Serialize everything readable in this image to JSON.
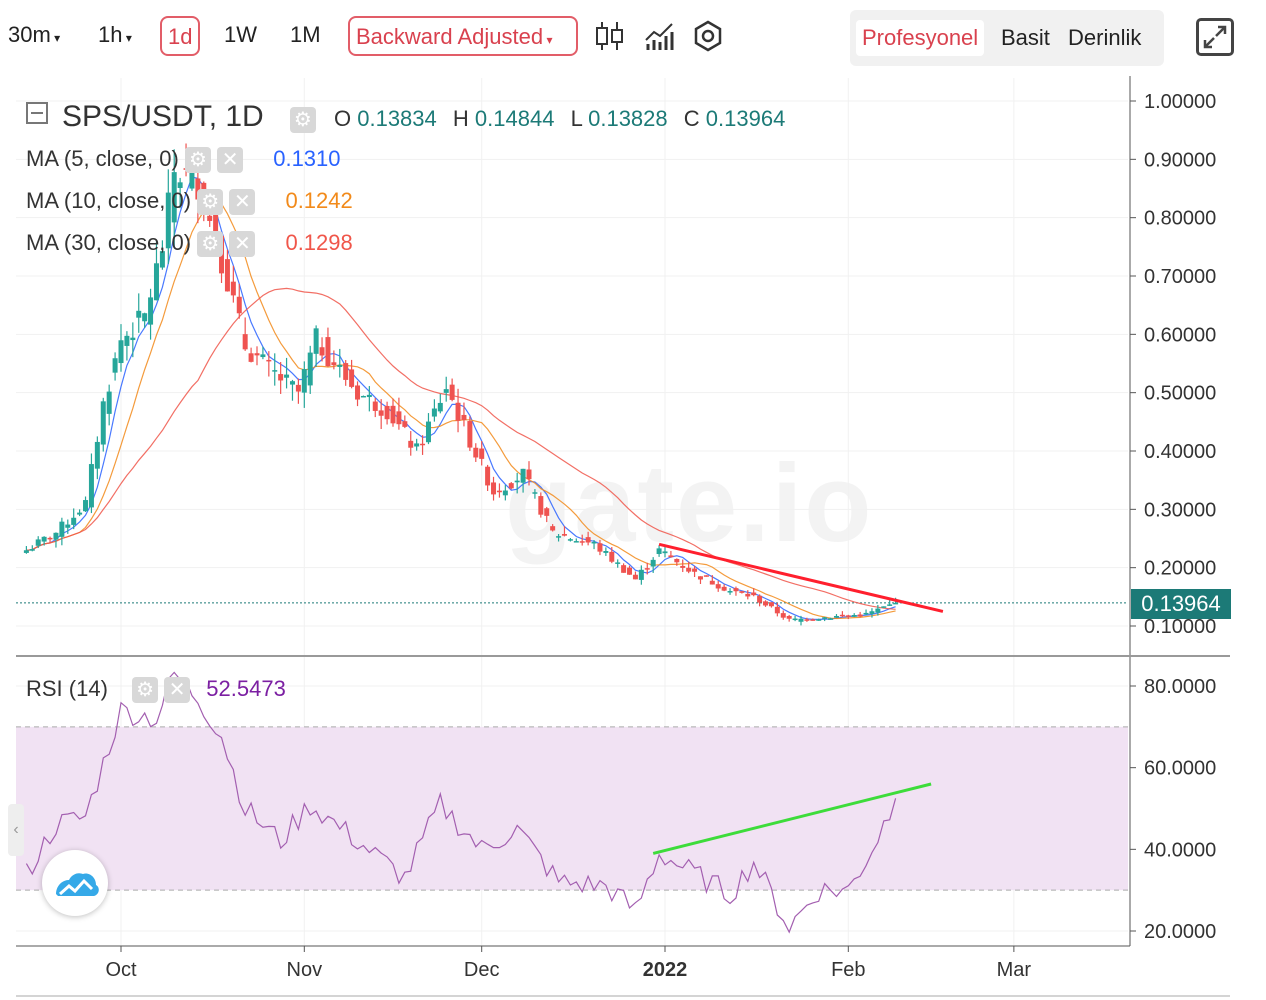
{
  "toolbar": {
    "intervals": [
      "30m",
      "1h",
      "1d",
      "1W",
      "1M"
    ],
    "active_interval": "1d",
    "adjustment": "Backward Adjusted",
    "view_modes": [
      "Profesyonel",
      "Basit",
      "Derinlik"
    ],
    "active_view": "Profesyonel",
    "icons": [
      "candlestick-icon",
      "indicators-icon",
      "settings-icon",
      "fullscreen-icon"
    ]
  },
  "watermark": "gate.io",
  "symbol": {
    "title": "SPS/USDT, 1D",
    "o_label": "O",
    "o_value": "0.13834",
    "h_label": "H",
    "h_value": "0.14844",
    "l_label": "L",
    "l_value": "0.13828",
    "c_label": "C",
    "c_value": "0.13964",
    "last_price": "0.13964"
  },
  "moving_averages": [
    {
      "label": "MA (5, close, 0)",
      "value": "0.1310",
      "color": "#2962ff"
    },
    {
      "label": "MA (10, close, 0)",
      "value": "0.1242",
      "color": "#f28a1a"
    },
    {
      "label": "MA (30, close, 0)",
      "value": "0.1298",
      "color": "#f0564a"
    }
  ],
  "rsi": {
    "label": "RSI (14)",
    "value": "52.5473",
    "color": "#7b1fa2"
  },
  "colors": {
    "up": "#26a69a",
    "down": "#ef5350",
    "resistance": "#ff1f2d",
    "support": "#3ddc3a",
    "rsi_band": "#f1e2f3"
  },
  "chart_data": [
    {
      "type": "candlestick",
      "title": "SPS/USDT, 1D",
      "x_ticks": [
        "Oct",
        "Nov",
        "Dec",
        "2022",
        "Feb",
        "Mar"
      ],
      "y_ticks": [
        "1.00000",
        "0.90000",
        "0.80000",
        "0.70000",
        "0.60000",
        "0.50000",
        "0.40000",
        "0.30000",
        "0.20000",
        "0.10000"
      ],
      "ylim": [
        0.1,
        1.0
      ],
      "approx_close_path": [
        {
          "date": "2021-09-15",
          "close": 0.23
        },
        {
          "date": "2021-09-20",
          "close": 0.26
        },
        {
          "date": "2021-09-25",
          "close": 0.31
        },
        {
          "date": "2021-09-28",
          "close": 0.48
        },
        {
          "date": "2021-10-01",
          "close": 0.59
        },
        {
          "date": "2021-10-05",
          "close": 0.63
        },
        {
          "date": "2021-10-08",
          "close": 0.75
        },
        {
          "date": "2021-10-10",
          "close": 0.88
        },
        {
          "date": "2021-10-14",
          "close": 0.86
        },
        {
          "date": "2021-10-18",
          "close": 0.73
        },
        {
          "date": "2021-10-22",
          "close": 0.58
        },
        {
          "date": "2021-10-26",
          "close": 0.54
        },
        {
          "date": "2021-10-31",
          "close": 0.5
        },
        {
          "date": "2021-11-03",
          "close": 0.59
        },
        {
          "date": "2021-11-10",
          "close": 0.5
        },
        {
          "date": "2021-11-15",
          "close": 0.47
        },
        {
          "date": "2021-11-20",
          "close": 0.4
        },
        {
          "date": "2021-11-25",
          "close": 0.51
        },
        {
          "date": "2021-11-28",
          "close": 0.44
        },
        {
          "date": "2021-12-03",
          "close": 0.33
        },
        {
          "date": "2021-12-08",
          "close": 0.36
        },
        {
          "date": "2021-12-13",
          "close": 0.26
        },
        {
          "date": "2021-12-20",
          "close": 0.24
        },
        {
          "date": "2021-12-27",
          "close": 0.18
        },
        {
          "date": "2021-12-31",
          "close": 0.23
        },
        {
          "date": "2022-01-06",
          "close": 0.19
        },
        {
          "date": "2022-01-12",
          "close": 0.16
        },
        {
          "date": "2022-01-16",
          "close": 0.15
        },
        {
          "date": "2022-01-22",
          "close": 0.11
        },
        {
          "date": "2022-01-28",
          "close": 0.115
        },
        {
          "date": "2022-02-04",
          "close": 0.12
        },
        {
          "date": "2022-02-09",
          "close": 0.13964
        }
      ],
      "annotations": [
        {
          "type": "trendline",
          "color": "#ff1f2d",
          "from": {
            "date": "2021-12-31",
            "price": 0.24
          },
          "to": {
            "date": "2022-02-17",
            "price": 0.125
          }
        }
      ]
    },
    {
      "type": "line",
      "title": "RSI (14)",
      "y_ticks": [
        "80.0000",
        "60.0000",
        "40.0000",
        "20.0000"
      ],
      "ylim": [
        20,
        80
      ],
      "band": [
        30,
        70
      ],
      "series": [
        {
          "values": [
            {
              "date": "2021-09-15",
              "rsi": 34
            },
            {
              "date": "2021-09-20",
              "rsi": 46
            },
            {
              "date": "2021-09-25",
              "rsi": 48
            },
            {
              "date": "2021-10-01",
              "rsi": 74
            },
            {
              "date": "2021-10-07",
              "rsi": 72
            },
            {
              "date": "2021-10-10",
              "rsi": 83
            },
            {
              "date": "2021-10-14",
              "rsi": 77
            },
            {
              "date": "2021-10-18",
              "rsi": 68
            },
            {
              "date": "2021-10-22",
              "rsi": 50
            },
            {
              "date": "2021-10-28",
              "rsi": 42
            },
            {
              "date": "2021-11-02",
              "rsi": 51
            },
            {
              "date": "2021-11-10",
              "rsi": 42
            },
            {
              "date": "2021-11-18",
              "rsi": 33
            },
            {
              "date": "2021-11-24",
              "rsi": 51
            },
            {
              "date": "2021-12-01",
              "rsi": 40
            },
            {
              "date": "2021-12-07",
              "rsi": 45
            },
            {
              "date": "2021-12-14",
              "rsi": 32
            },
            {
              "date": "2021-12-22",
              "rsi": 31
            },
            {
              "date": "2021-12-27",
              "rsi": 25
            },
            {
              "date": "2021-12-31",
              "rsi": 39
            },
            {
              "date": "2022-01-06",
              "rsi": 34
            },
            {
              "date": "2022-01-12",
              "rsi": 29
            },
            {
              "date": "2022-01-16",
              "rsi": 37
            },
            {
              "date": "2022-01-22",
              "rsi": 21
            },
            {
              "date": "2022-01-27",
              "rsi": 30
            },
            {
              "date": "2022-02-01",
              "rsi": 30
            },
            {
              "date": "2022-02-05",
              "rsi": 40
            },
            {
              "date": "2022-02-09",
              "rsi": 52.5
            }
          ]
        }
      ],
      "annotations": [
        {
          "type": "trendline",
          "color": "#3ddc3a",
          "from": {
            "date": "2021-12-30",
            "rsi": 39
          },
          "to": {
            "date": "2022-02-15",
            "rsi": 56
          }
        }
      ]
    }
  ]
}
